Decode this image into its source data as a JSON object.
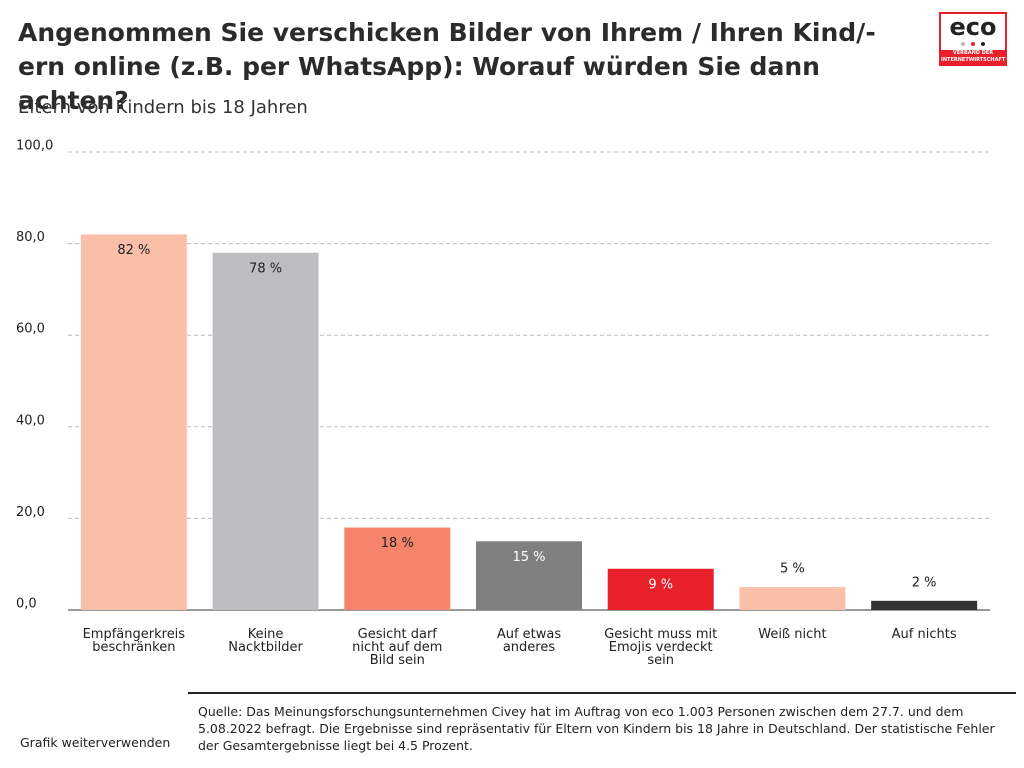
{
  "chart_data": {
    "type": "bar",
    "title": "Angenommen Sie verschicken Bilder von Ihrem / Ihren Kind/-ern online (z.B. per WhatsApp): Worauf würden Sie dann achten?",
    "subtitle": "Eltern von Kindern bis 18 Jahren",
    "categories": [
      "Empfängerkreis\nbeschränken",
      "Keine\nNacktbilder",
      "Gesicht darf\nnicht auf dem\nBild sein",
      "Auf etwas\nanderes",
      "Gesicht muss mit\nEmojis verdeckt\nsein",
      "Weiß nicht",
      "Auf nichts"
    ],
    "values": [
      82,
      78,
      18,
      15,
      9,
      5,
      2
    ],
    "value_labels": [
      "82 %",
      "78 %",
      "18 %",
      "15 %",
      "9 %",
      "5 %",
      "2 %"
    ],
    "colors": [
      "#f9bfa8",
      "#bdbec0",
      "#f4846a",
      "#808080",
      "#e8202a",
      "#f9bfa8",
      "#333333"
    ],
    "ylim": [
      0,
      100
    ],
    "yticks": [
      {
        "value": 0,
        "label": "0,0"
      },
      {
        "value": 20,
        "label": "20,0"
      },
      {
        "value": 40,
        "label": "40,0"
      },
      {
        "value": 60,
        "label": "60,0"
      },
      {
        "value": 80,
        "label": "80,0"
      },
      {
        "value": 100,
        "label": "100,0"
      }
    ],
    "grid": true,
    "source": "Quelle: Das Meinungsforschungsunternehmen Civey hat im Auftrag von eco 1.003 Personen zwischen dem 27.7. und dem 5.08.2022 befragt. Die Ergebnisse sind repräsentativ für Eltern von Kindern bis 18 Jahre in Deutschland. Der statistische Fehler der Gesamtergebnisse liegt bei 4.5 Prozent.",
    "footer_link": "Grafik weiterverwenden",
    "logo": {
      "name": "eco",
      "tagline": "VERBAND DER INTERNETWIRTSCHAFT"
    }
  }
}
